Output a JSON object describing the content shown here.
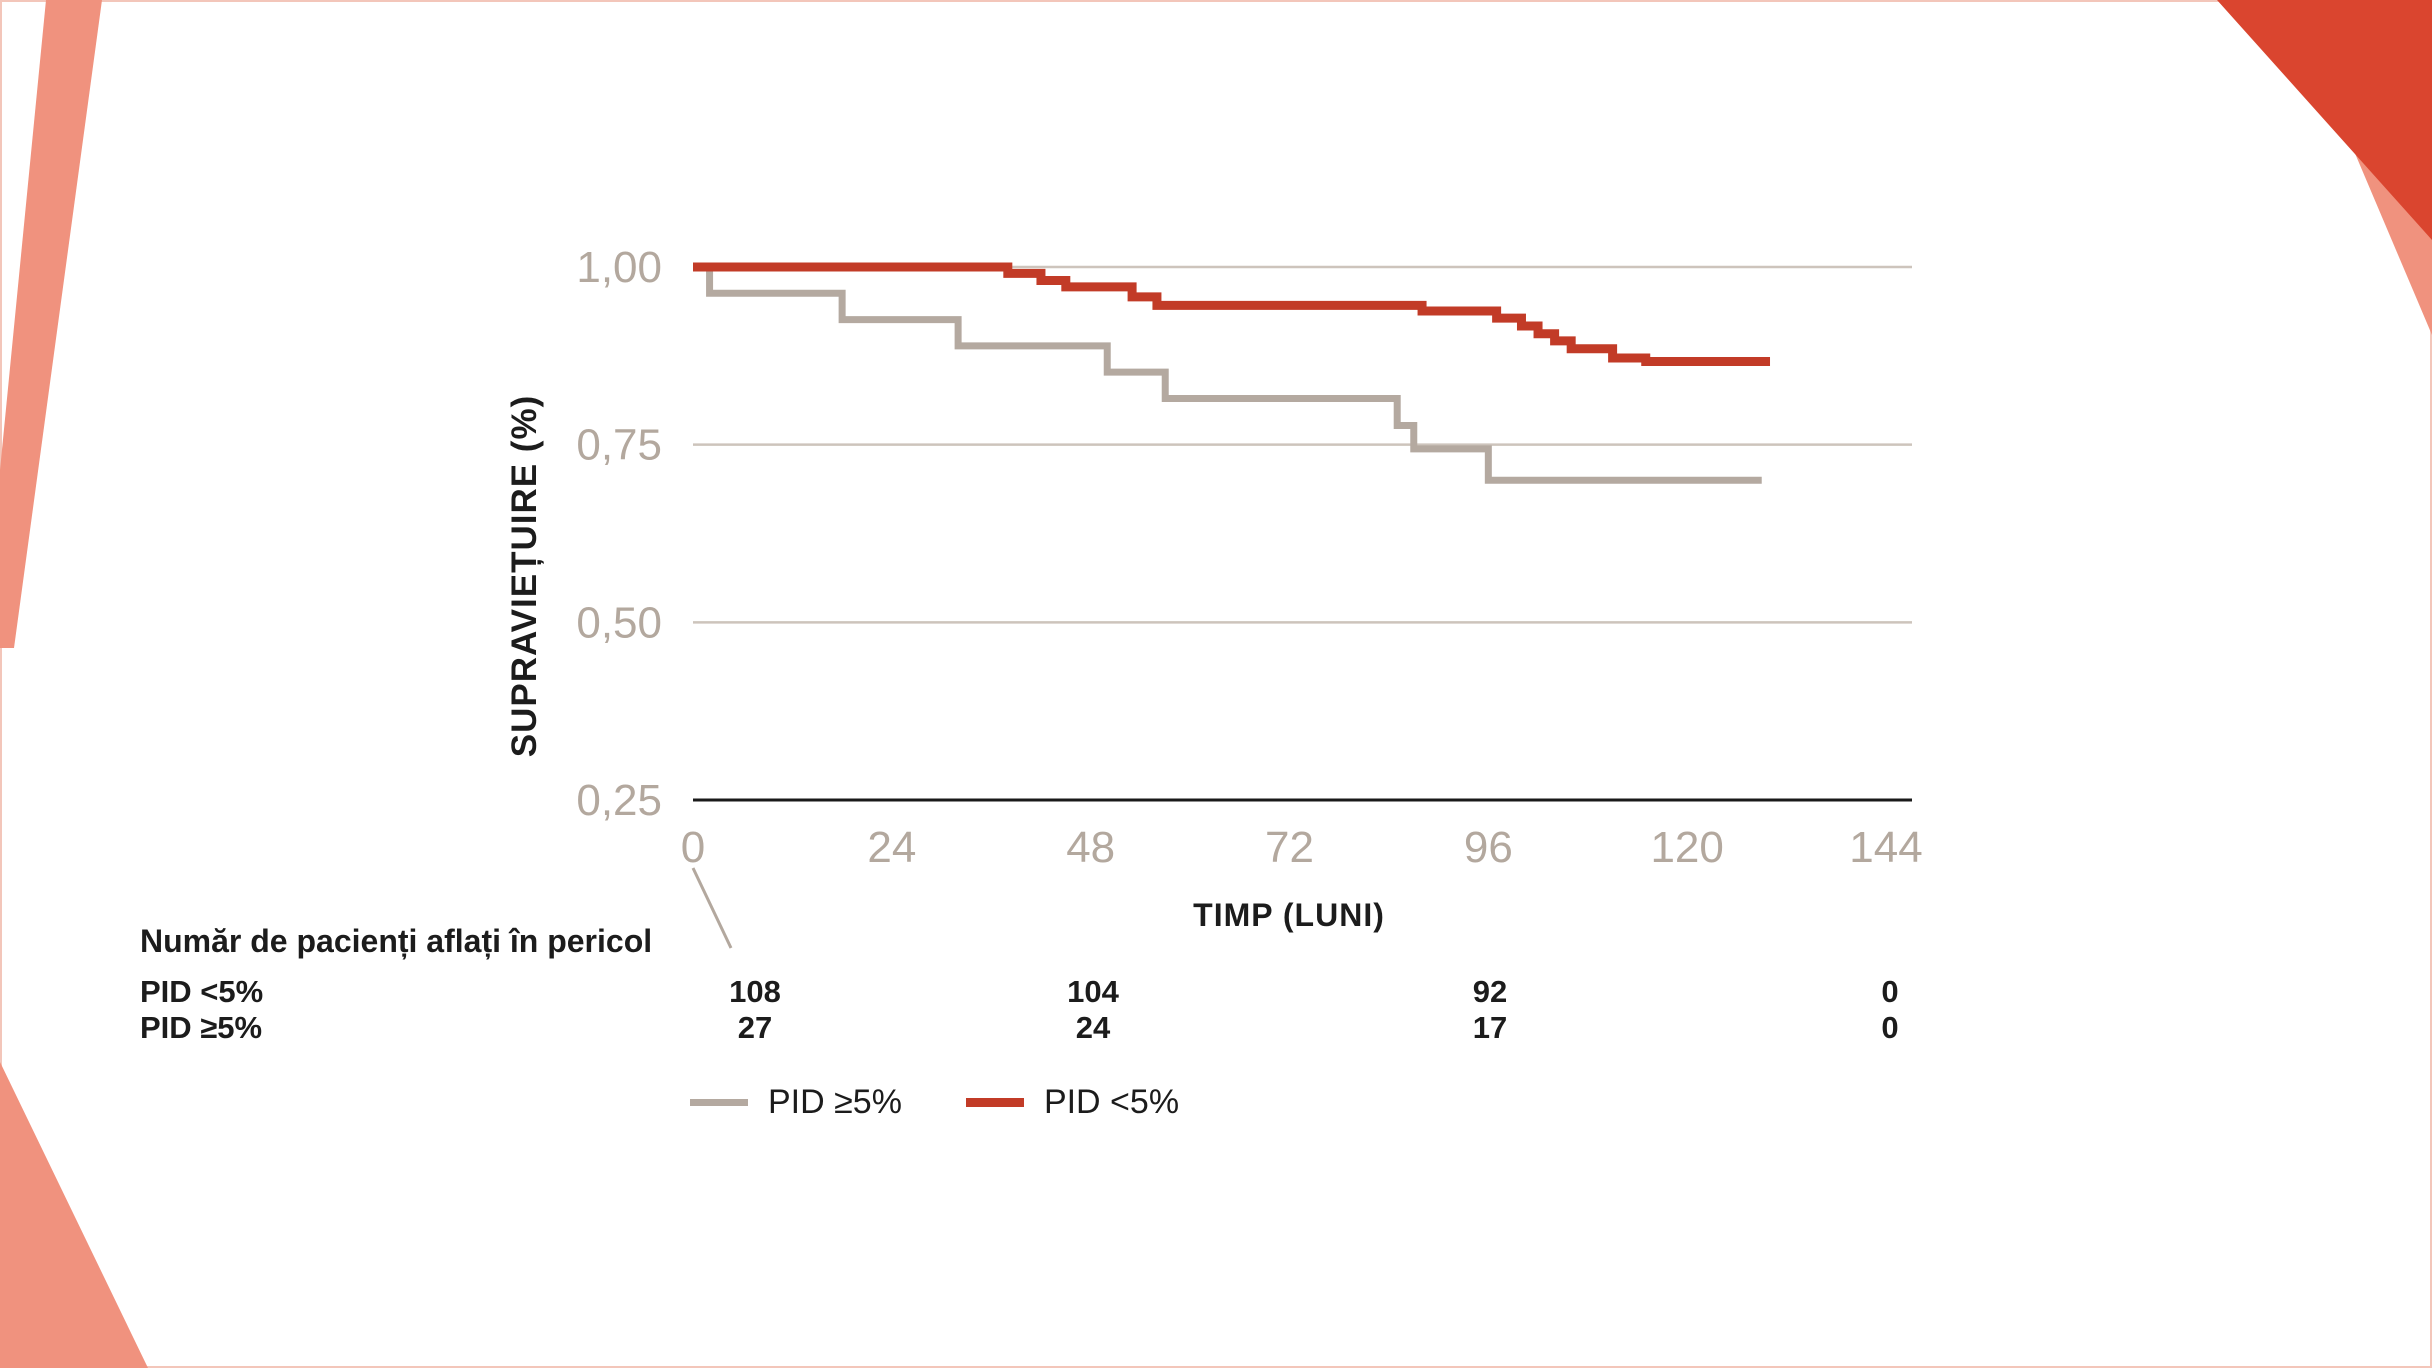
{
  "decorations": {
    "salmon": "#f0927e",
    "red": "#da452f"
  },
  "chart_data": {
    "type": "line",
    "subtype": "kaplan-meier-step",
    "title": "",
    "xlabel": "TIMP (LUNI)",
    "ylabel": "SUPRAVIEȚUIRE (%)",
    "xlim": [
      0,
      144
    ],
    "ylim": [
      0.25,
      1.0
    ],
    "xticks": [
      0,
      24,
      48,
      72,
      96,
      120,
      144
    ],
    "yticks": [
      "1,00",
      "0,75",
      "0,50",
      "0,25"
    ],
    "ytick_values": [
      1.0,
      0.75,
      0.5,
      0.25
    ],
    "gridlines": [
      1.0,
      0.75,
      0.5
    ],
    "grid_color": "#cdc4bc",
    "axis_color": "#1a1a1a",
    "tick_label_color": "#b3a89e",
    "legend_position": "bottom",
    "series": [
      {
        "name": "PID ≥5%",
        "color": "#b4a9a0",
        "width": 7,
        "end_time": 129,
        "points": [
          [
            0,
            1.0
          ],
          [
            2,
            0.963
          ],
          [
            18,
            0.926
          ],
          [
            32,
            0.889
          ],
          [
            50,
            0.852
          ],
          [
            57,
            0.815
          ],
          [
            85,
            0.777
          ],
          [
            87,
            0.744
          ],
          [
            96,
            0.7
          ]
        ]
      },
      {
        "name": "PID <5%",
        "color": "#c23b27",
        "width": 9,
        "end_time": 130,
        "points": [
          [
            0,
            1.0
          ],
          [
            38,
            0.991
          ],
          [
            42,
            0.981
          ],
          [
            45,
            0.972
          ],
          [
            53,
            0.958
          ],
          [
            56,
            0.946
          ],
          [
            88,
            0.938
          ],
          [
            97,
            0.928
          ],
          [
            100,
            0.917
          ],
          [
            102,
            0.906
          ],
          [
            104,
            0.896
          ],
          [
            106,
            0.885
          ],
          [
            111,
            0.872
          ],
          [
            115,
            0.867
          ]
        ]
      }
    ]
  },
  "risk_table": {
    "title": "Număr de pacienți aflați în pericol",
    "columns_months": [
      0,
      48,
      96,
      144
    ],
    "rows": [
      {
        "label": "PID <5%",
        "values": [
          "108",
          "104",
          "92",
          "0"
        ]
      },
      {
        "label": "PID ≥5%",
        "values": [
          "27",
          "24",
          "17",
          "0"
        ]
      }
    ]
  },
  "legend": {
    "items": [
      {
        "label": "PID ≥5%",
        "color": "#b4a9a0",
        "thickness": 7
      },
      {
        "label": "PID <5%",
        "color": "#c23b27",
        "thickness": 9
      }
    ]
  }
}
